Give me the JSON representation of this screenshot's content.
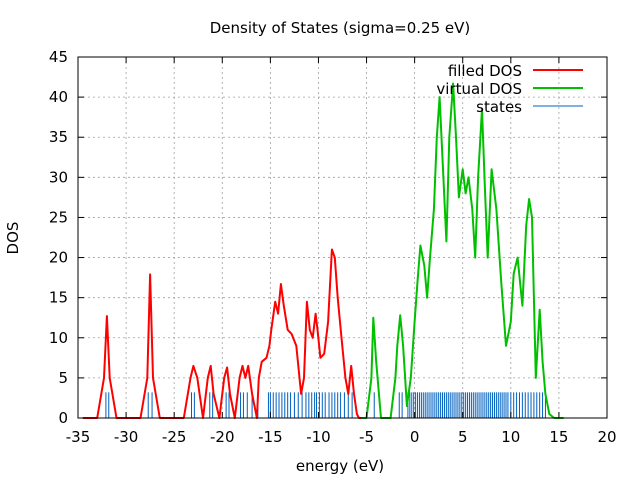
{
  "chart_data": {
    "type": "line",
    "title": "Density of States (sigma=0.25 eV)",
    "xlabel": "energy (eV)",
    "ylabel": "DOS",
    "xlim": [
      -35,
      20
    ],
    "ylim": [
      0,
      45
    ],
    "xticks": [
      -35,
      -30,
      -25,
      -20,
      -15,
      -10,
      -5,
      0,
      5,
      10,
      15,
      20
    ],
    "yticks": [
      0,
      5,
      10,
      15,
      20,
      25,
      30,
      35,
      40,
      45
    ],
    "grid": true,
    "legend_position": "top-right",
    "series": [
      {
        "name": "filled DOS",
        "color": "#ff0000",
        "x": [
          -34.5,
          -33,
          -32.3,
          -32,
          -31.7,
          -31,
          -28.5,
          -27.8,
          -27.5,
          -27.2,
          -26.5,
          -24,
          -23.3,
          -23,
          -22.6,
          -22,
          -21.5,
          -21.2,
          -20.9,
          -20.3,
          -19.8,
          -19.5,
          -19.2,
          -18.7,
          -18.2,
          -17.9,
          -17.6,
          -17.3,
          -16.9,
          -16.4,
          -16.2,
          -15.9,
          -15.4,
          -15.1,
          -14.9,
          -14.5,
          -14.2,
          -13.9,
          -13.6,
          -13.2,
          -12.8,
          -12.3,
          -11.8,
          -11.5,
          -11.2,
          -10.9,
          -10.6,
          -10.3,
          -10.1,
          -9.8,
          -9.4,
          -9,
          -8.6,
          -8.3,
          -8,
          -7.6,
          -7.2,
          -6.9,
          -6.6,
          -6.3,
          -6,
          -5.8,
          -5.5
        ],
        "y": [
          0,
          0,
          5,
          12.7,
          5,
          0,
          0,
          5,
          17.9,
          5,
          0,
          0,
          5,
          6.5,
          5,
          0,
          5,
          6.5,
          3,
          0,
          5,
          6.3,
          3,
          0,
          5,
          6.5,
          5,
          6.5,
          3,
          0,
          5,
          7,
          7.5,
          9,
          11,
          14.5,
          13,
          16.7,
          14,
          11,
          10.5,
          9,
          3,
          5,
          14.5,
          11,
          10,
          13,
          11,
          7.5,
          8,
          12,
          21,
          20,
          15,
          10,
          5,
          3,
          6.5,
          3,
          0.5,
          0,
          0
        ]
      },
      {
        "name": "virtual DOS",
        "color": "#00c000",
        "x": [
          -5.5,
          -5,
          -4.5,
          -4.3,
          -4,
          -3.5,
          -2.5,
          -2,
          -1.8,
          -1.5,
          -1.2,
          -0.8,
          -0.4,
          0,
          0.3,
          0.6,
          1,
          1.3,
          1.6,
          2,
          2.3,
          2.6,
          3.3,
          3.6,
          4,
          4.3,
          4.6,
          5,
          5.3,
          5.6,
          6,
          6.3,
          6.6,
          7,
          7.3,
          7.6,
          8,
          8.5,
          9,
          9.5,
          10,
          10.3,
          10.7,
          11.2,
          11.6,
          11.9,
          12.2,
          12.6,
          13,
          13.3,
          13.6,
          14,
          14.5,
          15,
          15.5
        ],
        "y": [
          0,
          0,
          5,
          12.5,
          7,
          0,
          0,
          5,
          9,
          12.8,
          9,
          1.5,
          5,
          12,
          17,
          21.5,
          19,
          15,
          20,
          26,
          35,
          40,
          22,
          35,
          41.7,
          35,
          27.5,
          31,
          28,
          30,
          26,
          20,
          30,
          38.5,
          29,
          20,
          31,
          26,
          17,
          9,
          12,
          18,
          20,
          14,
          24,
          27.3,
          25,
          5,
          13.5,
          7,
          3,
          0.5,
          0,
          0,
          0
        ]
      }
    ],
    "states": {
      "name": "states",
      "color": "#0060c0",
      "height": 3.2,
      "energies": [
        -32.1,
        -31.8,
        -27.7,
        -27.3,
        -23.2,
        -22.9,
        -21.3,
        -21,
        -19.6,
        -19.3,
        -18.1,
        -17.8,
        -17.4,
        -16.9,
        -16.3,
        -15.2,
        -15,
        -14.7,
        -14.4,
        -14.1,
        -13.8,
        -13.5,
        -13.2,
        -12.9,
        -12.5,
        -12.1,
        -11.7,
        -11.3,
        -11,
        -10.7,
        -10.4,
        -10.2,
        -9.9,
        -9.6,
        -9.3,
        -8.9,
        -8.6,
        -8.3,
        -8,
        -7.7,
        -7.3,
        -6.9,
        -6.5,
        -4.2,
        -1.6,
        -1.3,
        -0.7,
        -0.5,
        -0.3,
        -0.1,
        0.1,
        0.3,
        0.5,
        0.7,
        0.9,
        1.1,
        1.3,
        1.5,
        1.7,
        1.9,
        2.1,
        2.3,
        2.5,
        2.7,
        2.9,
        3.1,
        3.3,
        3.5,
        3.7,
        3.9,
        4.1,
        4.3,
        4.5,
        4.7,
        4.9,
        5.1,
        5.3,
        5.5,
        5.7,
        5.9,
        6.1,
        6.3,
        6.5,
        6.7,
        6.9,
        7.1,
        7.3,
        7.5,
        7.7,
        7.9,
        8.1,
        8.3,
        8.5,
        8.7,
        8.9,
        9.1,
        9.3,
        9.5,
        9.7,
        10,
        10.3,
        10.6,
        10.9,
        11.2,
        11.5,
        11.8,
        12.1,
        12.4,
        12.7,
        13,
        13.3,
        13.6
      ]
    }
  }
}
